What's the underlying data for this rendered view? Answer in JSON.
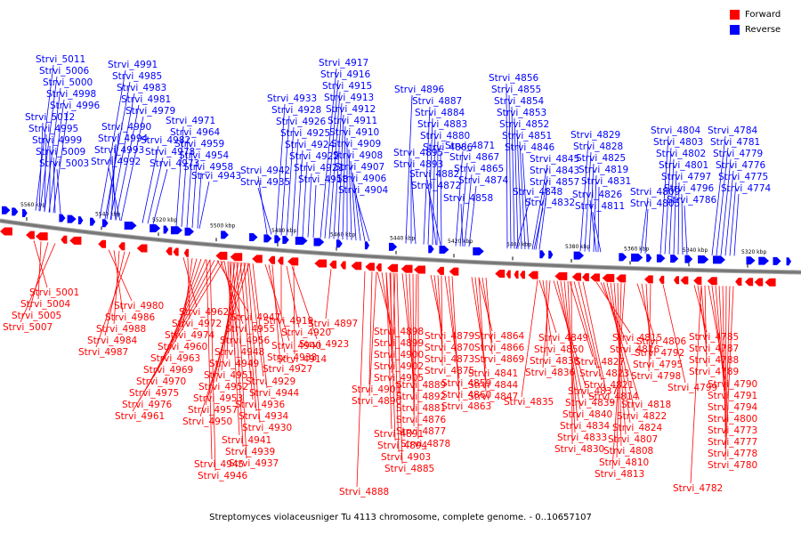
{
  "legend": {
    "forward_label": "Forward",
    "reverse_label": "Reverse",
    "forward_color": "#ff0000",
    "reverse_color": "#0000ff"
  },
  "caption": "Streptomyces violaceusniger Tu 4113 chromosome, complete genome. - 0..10657107",
  "colors": {
    "backbone": "#777777"
  },
  "scale_labels": [
    "5560 kbp",
    "5540 kbp",
    "5520 kbp",
    "5500 kbp",
    "5480 kbp",
    "5460 kbp",
    "5440 kbp",
    "5420 kbp",
    "5400 kbp",
    "5380 kbp",
    "5360 kbp",
    "5340 kbp",
    "5320 kbp"
  ],
  "reverse_genes": [
    "Strvi_5011",
    "Strvi_5006",
    "Strvi_5000",
    "Strvi_4998",
    "Strvi_4996",
    "Strvi_5012",
    "Strvi_4995",
    "Strvi_4999",
    "Strvi_5009",
    "Strvi_5003",
    "Strvi_4991",
    "Strvi_4985",
    "Strvi_4983",
    "Strvi_4981",
    "Strvi_4979",
    "Strvi_4990",
    "Strvi_4994",
    "Strvi_4993",
    "Strvi_4992",
    "Strvi_4982",
    "Strvi_4978",
    "Strvi_4973",
    "Strvi_4971",
    "Strvi_4964",
    "Strvi_4959",
    "Strvi_4954",
    "Strvi_4958",
    "Strvi_4943",
    "Strvi_4942",
    "Strvi_4935",
    "Strvi_4933",
    "Strvi_4928",
    "Strvi_4926",
    "Strvi_4925",
    "Strvi_4924",
    "Strvi_4922",
    "Strvi_4921",
    "Strvi_4918",
    "Strvi_4917",
    "Strvi_4916",
    "Strvi_4915",
    "Strvi_4913",
    "Strvi_4912",
    "Strvi_4911",
    "Strvi_4910",
    "Strvi_4909",
    "Strvi_4908",
    "Strvi_4907",
    "Strvi_4906",
    "Strvi_4904",
    "Strvi_4896",
    "Strvi_4895",
    "Strvi_4893",
    "Strvi_4887",
    "Strvi_4884",
    "Strvi_4883",
    "Strvi_4880",
    "Strvi_4886",
    "Strvi_4882",
    "Strvi_4872",
    "Strvi_4871",
    "Strvi_4867",
    "Strvi_4865",
    "Strvi_4874",
    "Strvi_4858",
    "Strvi_4856",
    "Strvi_4855",
    "Strvi_4854",
    "Strvi_4853",
    "Strvi_4852",
    "Strvi_4851",
    "Strvi_4846",
    "Strvi_4845",
    "Strvi_4843",
    "Strvi_4857",
    "Strvi_4848",
    "Strvi_4832",
    "Strvi_4829",
    "Strvi_4828",
    "Strvi_4825",
    "Strvi_4819",
    "Strvi_4831",
    "Strvi_4826",
    "Strvi_4811",
    "Strvi_4809",
    "Strvi_4805",
    "Strvi_4804",
    "Strvi_4803",
    "Strvi_4802",
    "Strvi_4801",
    "Strvi_4797",
    "Strvi_4796",
    "Strvi_4786",
    "Strvi_4784",
    "Strvi_4781",
    "Strvi_4779",
    "Strvi_4776",
    "Strvi_4775",
    "Strvi_4774"
  ],
  "forward_genes": [
    "Strvi_5001",
    "Strvi_5004",
    "Strvi_5005",
    "Strvi_5007",
    "Strvi_4980",
    "Strvi_4986",
    "Strvi_4988",
    "Strvi_4984",
    "Strvi_4987",
    "Strvi_4962",
    "Strvi_4972",
    "Strvi_4974",
    "Strvi_4960",
    "Strvi_4963",
    "Strvi_4969",
    "Strvi_4970",
    "Strvi_4975",
    "Strvi_4976",
    "Strvi_4961",
    "Strvi_4947",
    "Strvi_4955",
    "Strvi_4956",
    "Strvi_4948",
    "Strvi_4949",
    "Strvi_4951",
    "Strvi_4952",
    "Strvi_4953",
    "Strvi_4957",
    "Strvi_4950",
    "Strvi_4945",
    "Strvi_4946",
    "Strvi_4941",
    "Strvi_4939",
    "Strvi_4937",
    "Strvi_4936",
    "Strvi_4934",
    "Strvi_4930",
    "Strvi_4929",
    "Strvi_4944",
    "Strvi_4940",
    "Strvi_4938",
    "Strvi_4927",
    "Strvi_4919",
    "Strvi_4920",
    "Strvi_4923",
    "Strvi_4914",
    "Strvi_4897",
    "Strvi_4898",
    "Strvi_4899",
    "Strvi_4900",
    "Strvi_4902",
    "Strvi_4905",
    "Strvi_4901",
    "Strvi_4890",
    "Strvi_4891",
    "Strvi_4894",
    "Strvi_4903",
    "Strvi_4885",
    "Strvi_4888",
    "Strvi_4889",
    "Strvi_4892",
    "Strvi_4881",
    "Strvi_4876",
    "Strvi_4877",
    "Strvi_4878",
    "Strvi_4879",
    "Strvi_4870",
    "Strvi_4873",
    "Strvi_4875",
    "Strvi_4859",
    "Strvi_4860",
    "Strvi_4863",
    "Strvi_4864",
    "Strvi_4866",
    "Strvi_4869",
    "Strvi_4841",
    "Strvi_4844",
    "Strvi_4847",
    "Strvi_4849",
    "Strvi_4850",
    "Strvi_4838",
    "Strvi_4836",
    "Strvi_4835",
    "Strvi_4837",
    "Strvi_4839",
    "Strvi_4840",
    "Strvi_4834",
    "Strvi_4833",
    "Strvi_4830",
    "Strvi_4827",
    "Strvi_4823",
    "Strvi_4821",
    "Strvi_4814",
    "Strvi_4815",
    "Strvi_4816",
    "Strvi_4818",
    "Strvi_4822",
    "Strvi_4824",
    "Strvi_4807",
    "Strvi_4808",
    "Strvi_4810",
    "Strvi_4813",
    "Strvi_4806",
    "Strvi_4792",
    "Strvi_4795",
    "Strvi_4798",
    "Strvi_4799",
    "Strvi_4785",
    "Strvi_4787",
    "Strvi_4788",
    "Strvi_4789",
    "Strvi_4790",
    "Strvi_4791",
    "Strvi_4794",
    "Strvi_4800",
    "Strvi_4773",
    "Strvi_4777",
    "Strvi_4778",
    "Strvi_4780",
    "Strvi_4782"
  ]
}
